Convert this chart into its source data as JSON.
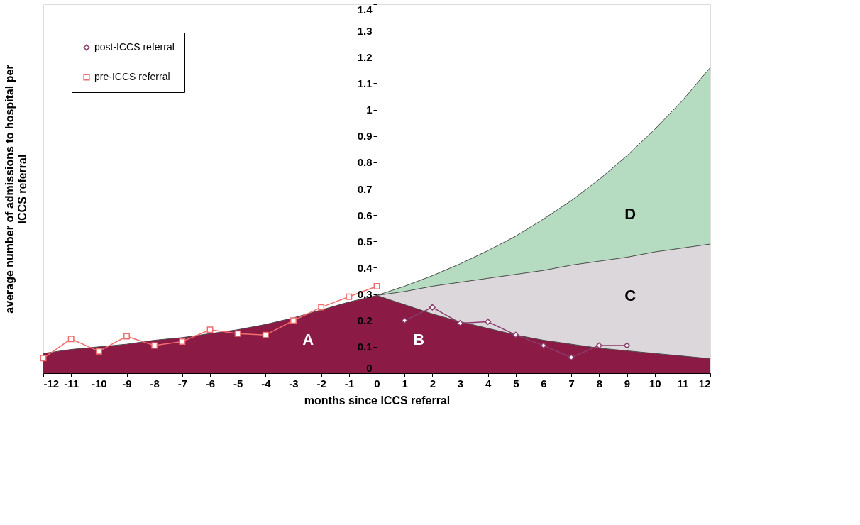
{
  "chart_data": {
    "type": "line",
    "xlabel": "months since ICCS referral",
    "ylabel": "average number of admissions to hospital per ICCS referral",
    "xlim": [
      -12,
      12
    ],
    "xticks": [
      -12,
      -11,
      -10,
      -9,
      -8,
      -7,
      -6,
      -5,
      -4,
      -3,
      -2,
      -1,
      0,
      1,
      2,
      3,
      4,
      5,
      6,
      7,
      8,
      9,
      10,
      11,
      12
    ],
    "ylim": [
      0,
      1.4
    ],
    "yticks": [
      0,
      0.1,
      0.2,
      0.3,
      0.4,
      0.5,
      0.6,
      0.7,
      0.8,
      0.9,
      1,
      1.1,
      1.2,
      1.3,
      1.4
    ],
    "grid": false,
    "legend": "top left",
    "line_style": "solid",
    "series": [
      {
        "type": "area",
        "color": "#b5dcc0",
        "x": [
          0,
          1,
          2,
          3,
          4,
          5,
          6,
          7,
          8,
          9,
          10,
          11,
          12
        ],
        "values": [
          0.295,
          0.33,
          0.37,
          0.415,
          0.465,
          0.52,
          0.585,
          0.655,
          0.735,
          0.825,
          0.925,
          1.035,
          1.16
        ]
      },
      {
        "type": "area",
        "color": "#dcd7da",
        "x": [
          0,
          1,
          2,
          3,
          4,
          5,
          6,
          7,
          8,
          9,
          10,
          11,
          12
        ],
        "values": [
          0.295,
          0.31,
          0.33,
          0.345,
          0.36,
          0.375,
          0.39,
          0.41,
          0.425,
          0.44,
          0.46,
          0.475,
          0.49
        ]
      },
      {
        "type": "area",
        "color": "#8b1a45",
        "x": [
          -12,
          -11,
          -10,
          -9,
          -8,
          -7,
          -6,
          -5,
          -4,
          -3,
          -2,
          -1,
          0,
          1,
          2,
          3,
          4,
          5,
          6,
          7,
          8,
          9,
          10,
          11,
          12
        ],
        "values": [
          0.075,
          0.09,
          0.1,
          0.11,
          0.125,
          0.135,
          0.15,
          0.165,
          0.185,
          0.21,
          0.24,
          0.27,
          0.295,
          0.26,
          0.225,
          0.195,
          0.17,
          0.145,
          0.125,
          0.11,
          0.095,
          0.085,
          0.075,
          0.065,
          0.055
        ]
      },
      {
        "name": "post-ICCS referral",
        "color": "#8b3a6b",
        "marker": "diamond",
        "x": [
          1,
          2,
          3,
          4,
          5,
          6,
          7,
          8,
          9
        ],
        "values": [
          0.2,
          0.25,
          0.19,
          0.195,
          0.145,
          0.105,
          0.06,
          0.105,
          0.105
        ]
      },
      {
        "name": "pre-ICCS referral",
        "color": "#f06e6e",
        "marker": "square",
        "x": [
          -12,
          -11,
          -10,
          -9,
          -8,
          -7,
          -6,
          -5,
          -4,
          -3,
          -2,
          -1,
          0
        ],
        "values": [
          0.057,
          0.13,
          0.083,
          0.14,
          0.105,
          0.12,
          0.165,
          0.15,
          0.145,
          0.2,
          0.25,
          0.29,
          0.33
        ]
      }
    ],
    "annotations": [
      "A",
      "B",
      "C",
      "D"
    ]
  }
}
